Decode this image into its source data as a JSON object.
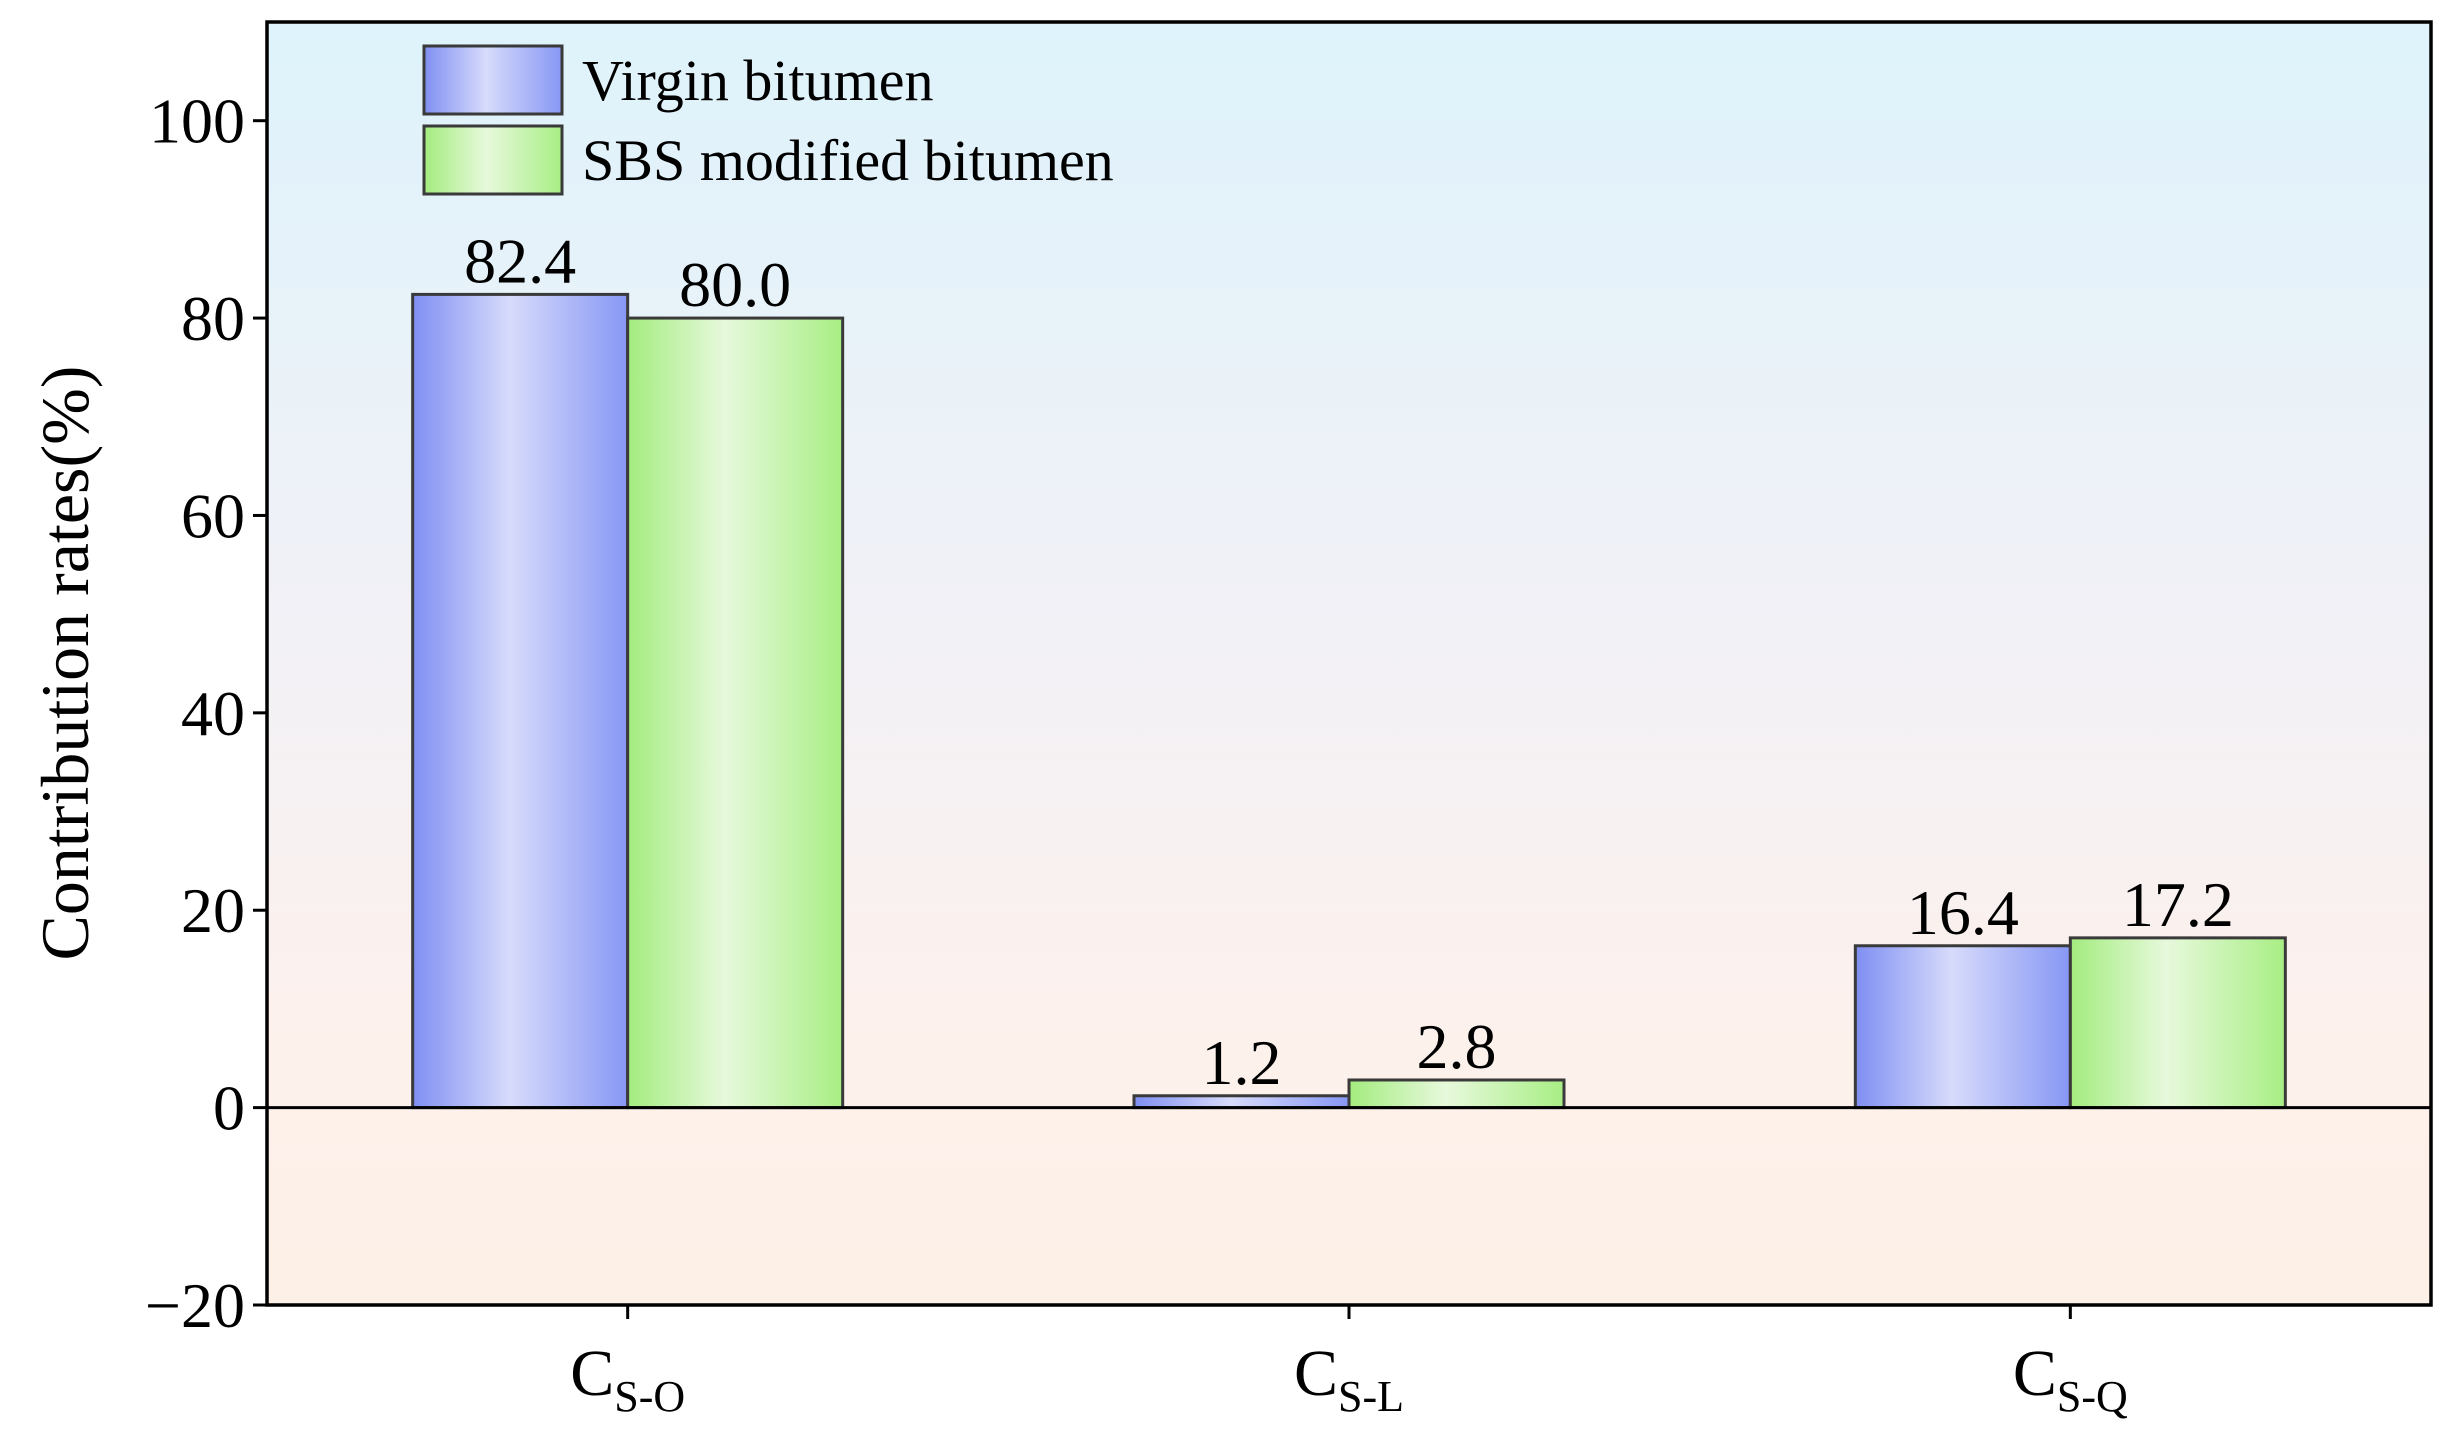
{
  "chart_data": {
    "type": "bar",
    "title": "",
    "xlabel": "",
    "ylabel": "Contribution rates(%)",
    "ylim": [
      -20,
      110
    ],
    "yticks": [
      -20,
      0,
      20,
      40,
      60,
      80,
      100
    ],
    "ytick_labels": [
      "−20",
      "0",
      "20",
      "40",
      "60",
      "80",
      "100"
    ],
    "categories": [
      {
        "base": "C",
        "sub": "S-O"
      },
      {
        "base": "C",
        "sub": "S-L"
      },
      {
        "base": "C",
        "sub": "S-Q"
      }
    ],
    "series": [
      {
        "name": "Virgin bitumen",
        "values": [
          82.4,
          1.2,
          16.4
        ],
        "labels": [
          "82.4",
          "1.2",
          "16.4"
        ],
        "color": "#8c9cf5"
      },
      {
        "name": "SBS modified bitumen",
        "values": [
          80.0,
          2.8,
          17.2
        ],
        "labels": [
          "80.0",
          "2.8",
          "17.2"
        ],
        "color": "#aef08c"
      }
    ],
    "legend_position": "top-left",
    "grid": false,
    "zero_line": true
  }
}
